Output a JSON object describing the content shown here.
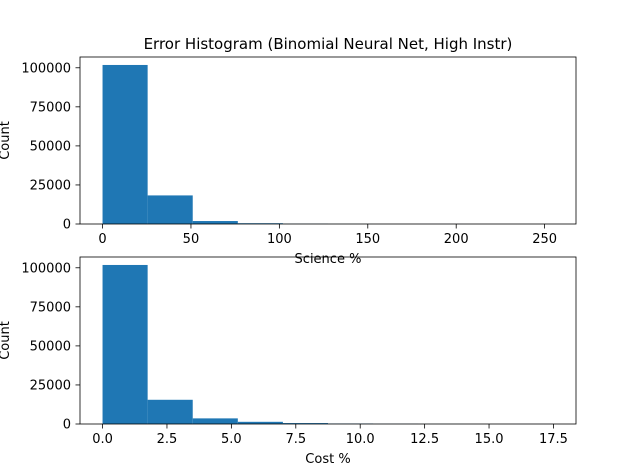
{
  "chart_data": [
    {
      "type": "bar",
      "title": "Error Histogram (Binomial Neural Net, High Instr)",
      "xlabel": "Science %",
      "ylabel": "Count",
      "bin_edges": [
        0,
        25.5,
        51,
        76.5,
        102,
        127.5,
        153,
        178.5,
        204,
        229.5,
        255
      ],
      "values": [
        101800,
        18300,
        1900,
        500,
        120,
        40,
        20,
        10,
        5,
        3
      ],
      "xlim": [
        -12.75,
        267.75
      ],
      "ylim": [
        0,
        106900
      ],
      "xticks": [
        0,
        50,
        100,
        150,
        200,
        250
      ],
      "xtick_labels": [
        "0",
        "50",
        "100",
        "150",
        "200",
        "250"
      ],
      "yticks": [
        0,
        25000,
        50000,
        75000,
        100000
      ],
      "ytick_labels": [
        "0",
        "25000",
        "50000",
        "75000",
        "100000"
      ],
      "bar_color": "#1f77b4",
      "grid": false,
      "legend": "none"
    },
    {
      "type": "bar",
      "title": "",
      "xlabel": "Cost %",
      "ylabel": "Count",
      "bin_edges": [
        0,
        1.75,
        3.5,
        5.25,
        7.0,
        8.75,
        10.5,
        12.25,
        14.0,
        15.75,
        17.5
      ],
      "values": [
        101800,
        15500,
        3600,
        1400,
        600,
        300,
        100,
        40,
        20,
        10
      ],
      "xlim": [
        -0.875,
        18.375
      ],
      "ylim": [
        0,
        106900
      ],
      "xticks": [
        0,
        2.5,
        5.0,
        7.5,
        10.0,
        12.5,
        15.0,
        17.5
      ],
      "xtick_labels": [
        "0.0",
        "2.5",
        "5.0",
        "7.5",
        "10.0",
        "12.5",
        "15.0",
        "17.5"
      ],
      "yticks": [
        0,
        25000,
        50000,
        75000,
        100000
      ],
      "ytick_labels": [
        "0",
        "25000",
        "50000",
        "75000",
        "100000"
      ],
      "bar_color": "#1f77b4",
      "grid": false,
      "legend": "none"
    }
  ]
}
